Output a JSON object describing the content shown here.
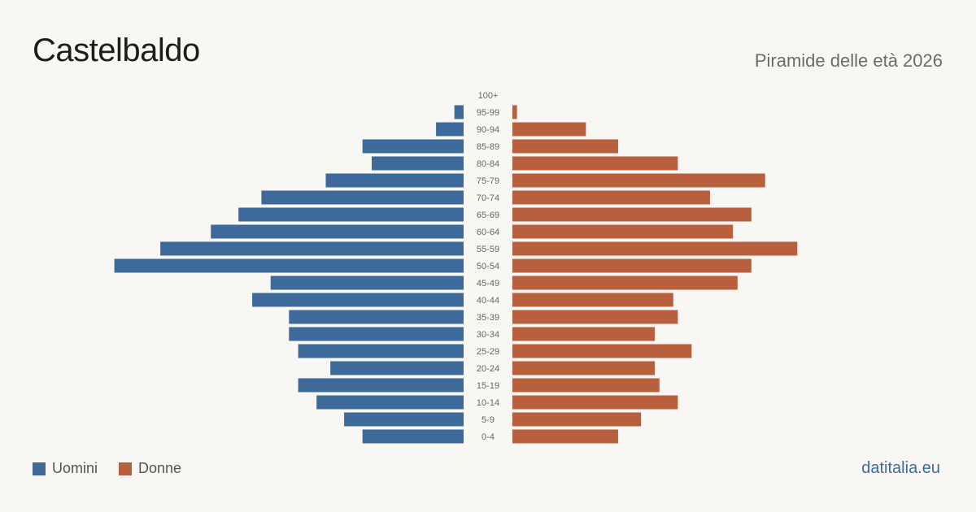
{
  "header": {
    "title": "Castelbaldo",
    "subtitle": "Piramide delle età 2026"
  },
  "legend": {
    "men_label": "Uomini",
    "women_label": "Donne"
  },
  "footer": {
    "source": "datitalia.eu"
  },
  "colors": {
    "men": "#3d6a9b",
    "women": "#b85f3e"
  },
  "chart_data": {
    "type": "bar",
    "orientation": "horizontal-pyramid",
    "title": "Castelbaldo",
    "subtitle": "Piramide delle età 2026",
    "categories": [
      "100+",
      "95-99",
      "90-94",
      "85-89",
      "80-84",
      "75-79",
      "70-74",
      "65-69",
      "60-64",
      "55-59",
      "50-54",
      "45-49",
      "40-44",
      "35-39",
      "30-34",
      "25-29",
      "20-24",
      "15-19",
      "10-14",
      "5-9",
      "0-4"
    ],
    "series": [
      {
        "name": "Uomini",
        "values": [
          0,
          2,
          6,
          22,
          20,
          30,
          44,
          49,
          55,
          66,
          76,
          42,
          46,
          38,
          38,
          36,
          29,
          36,
          32,
          26,
          22
        ]
      },
      {
        "name": "Donne",
        "values": [
          0,
          1,
          16,
          23,
          36,
          55,
          43,
          52,
          48,
          62,
          52,
          49,
          35,
          36,
          31,
          39,
          31,
          32,
          36,
          28,
          23
        ]
      }
    ],
    "legend_position": "bottom-left",
    "grid": false
  }
}
